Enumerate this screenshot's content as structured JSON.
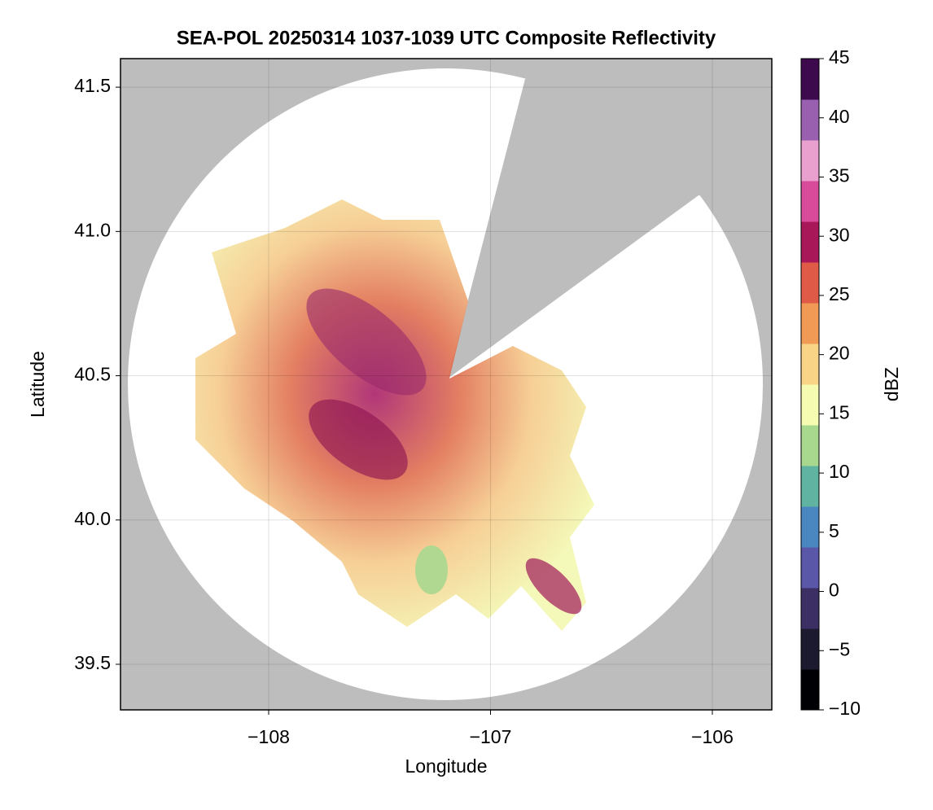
{
  "chart_data": {
    "type": "radar-map",
    "title": "SEA-POL 20250314 1037-1039 UTC Composite Reflectivity",
    "x_label": "Longitude",
    "y_label": "Latitude",
    "xlim": [
      -108.668,
      -105.732
    ],
    "xticks": [
      {
        "value": -108,
        "label": "−108"
      },
      {
        "value": -107,
        "label": "−107"
      },
      {
        "value": -106,
        "label": "−106"
      }
    ],
    "ylim": [
      39.342,
      41.599
    ],
    "yticks": [
      39.5,
      40.0,
      40.5,
      41.0,
      41.5
    ],
    "grid": true,
    "colorbar": {
      "label": "dBZ",
      "lim": [
        -10,
        45
      ],
      "ticks": [
        {
          "value": -10,
          "label": "−10"
        },
        {
          "value": -5,
          "label": "−5"
        },
        0,
        5,
        10,
        15,
        20,
        25,
        30,
        35,
        40,
        45
      ],
      "colors": [
        "#000004",
        "#1c1a2e",
        "#3b2f63",
        "#5a56a8",
        "#4a86c0",
        "#5fb3a0",
        "#a8d88e",
        "#f5fbb0",
        "#f8d586",
        "#f09a55",
        "#df5a47",
        "#a81858",
        "#d84a9a",
        "#e9a0cf",
        "#9a60b0",
        "#3d0a4e"
      ]
    }
  }
}
